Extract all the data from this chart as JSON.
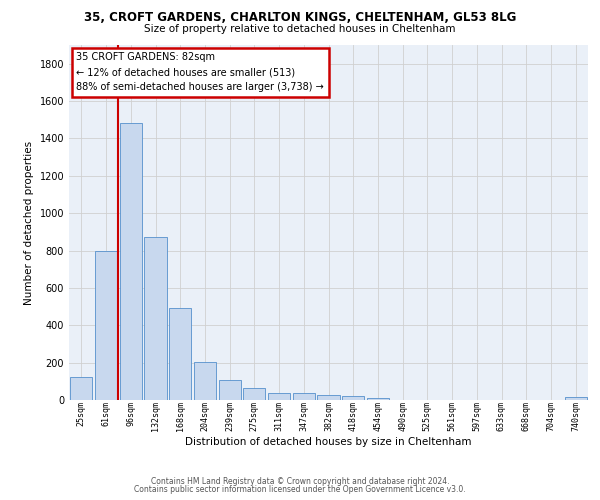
{
  "title_line1": "35, CROFT GARDENS, CHARLTON KINGS, CHELTENHAM, GL53 8LG",
  "title_line2": "Size of property relative to detached houses in Cheltenham",
  "xlabel": "Distribution of detached houses by size in Cheltenham",
  "ylabel": "Number of detached properties",
  "footer_line1": "Contains HM Land Registry data © Crown copyright and database right 2024.",
  "footer_line2": "Contains public sector information licensed under the Open Government Licence v3.0.",
  "bar_labels": [
    "25sqm",
    "61sqm",
    "96sqm",
    "132sqm",
    "168sqm",
    "204sqm",
    "239sqm",
    "275sqm",
    "311sqm",
    "347sqm",
    "382sqm",
    "418sqm",
    "454sqm",
    "490sqm",
    "525sqm",
    "561sqm",
    "597sqm",
    "633sqm",
    "668sqm",
    "704sqm",
    "740sqm"
  ],
  "bar_values": [
    125,
    800,
    1480,
    875,
    490,
    205,
    105,
    65,
    40,
    35,
    25,
    20,
    10,
    0,
    0,
    0,
    0,
    0,
    0,
    0,
    15
  ],
  "bar_color": "#c8d8ee",
  "bar_edge_color": "#5590cc",
  "grid_color": "#d0d0d0",
  "vline_x": 1.5,
  "vline_color": "#cc0000",
  "annotation_text": "35 CROFT GARDENS: 82sqm\n← 12% of detached houses are smaller (513)\n88% of semi-detached houses are larger (3,738) →",
  "annotation_box_edgecolor": "#cc0000",
  "annotation_box_facecolor": "#ffffff",
  "ylim": [
    0,
    1900
  ],
  "yticks": [
    0,
    200,
    400,
    600,
    800,
    1000,
    1200,
    1400,
    1600,
    1800
  ],
  "bg_color": "#eaf0f8",
  "title1_fontsize": 8.5,
  "title2_fontsize": 7.5,
  "ylabel_fontsize": 7.5,
  "xlabel_fontsize": 7.5,
  "ytick_fontsize": 7,
  "xtick_fontsize": 6,
  "footer_fontsize": 5.5,
  "annotation_fontsize": 7
}
